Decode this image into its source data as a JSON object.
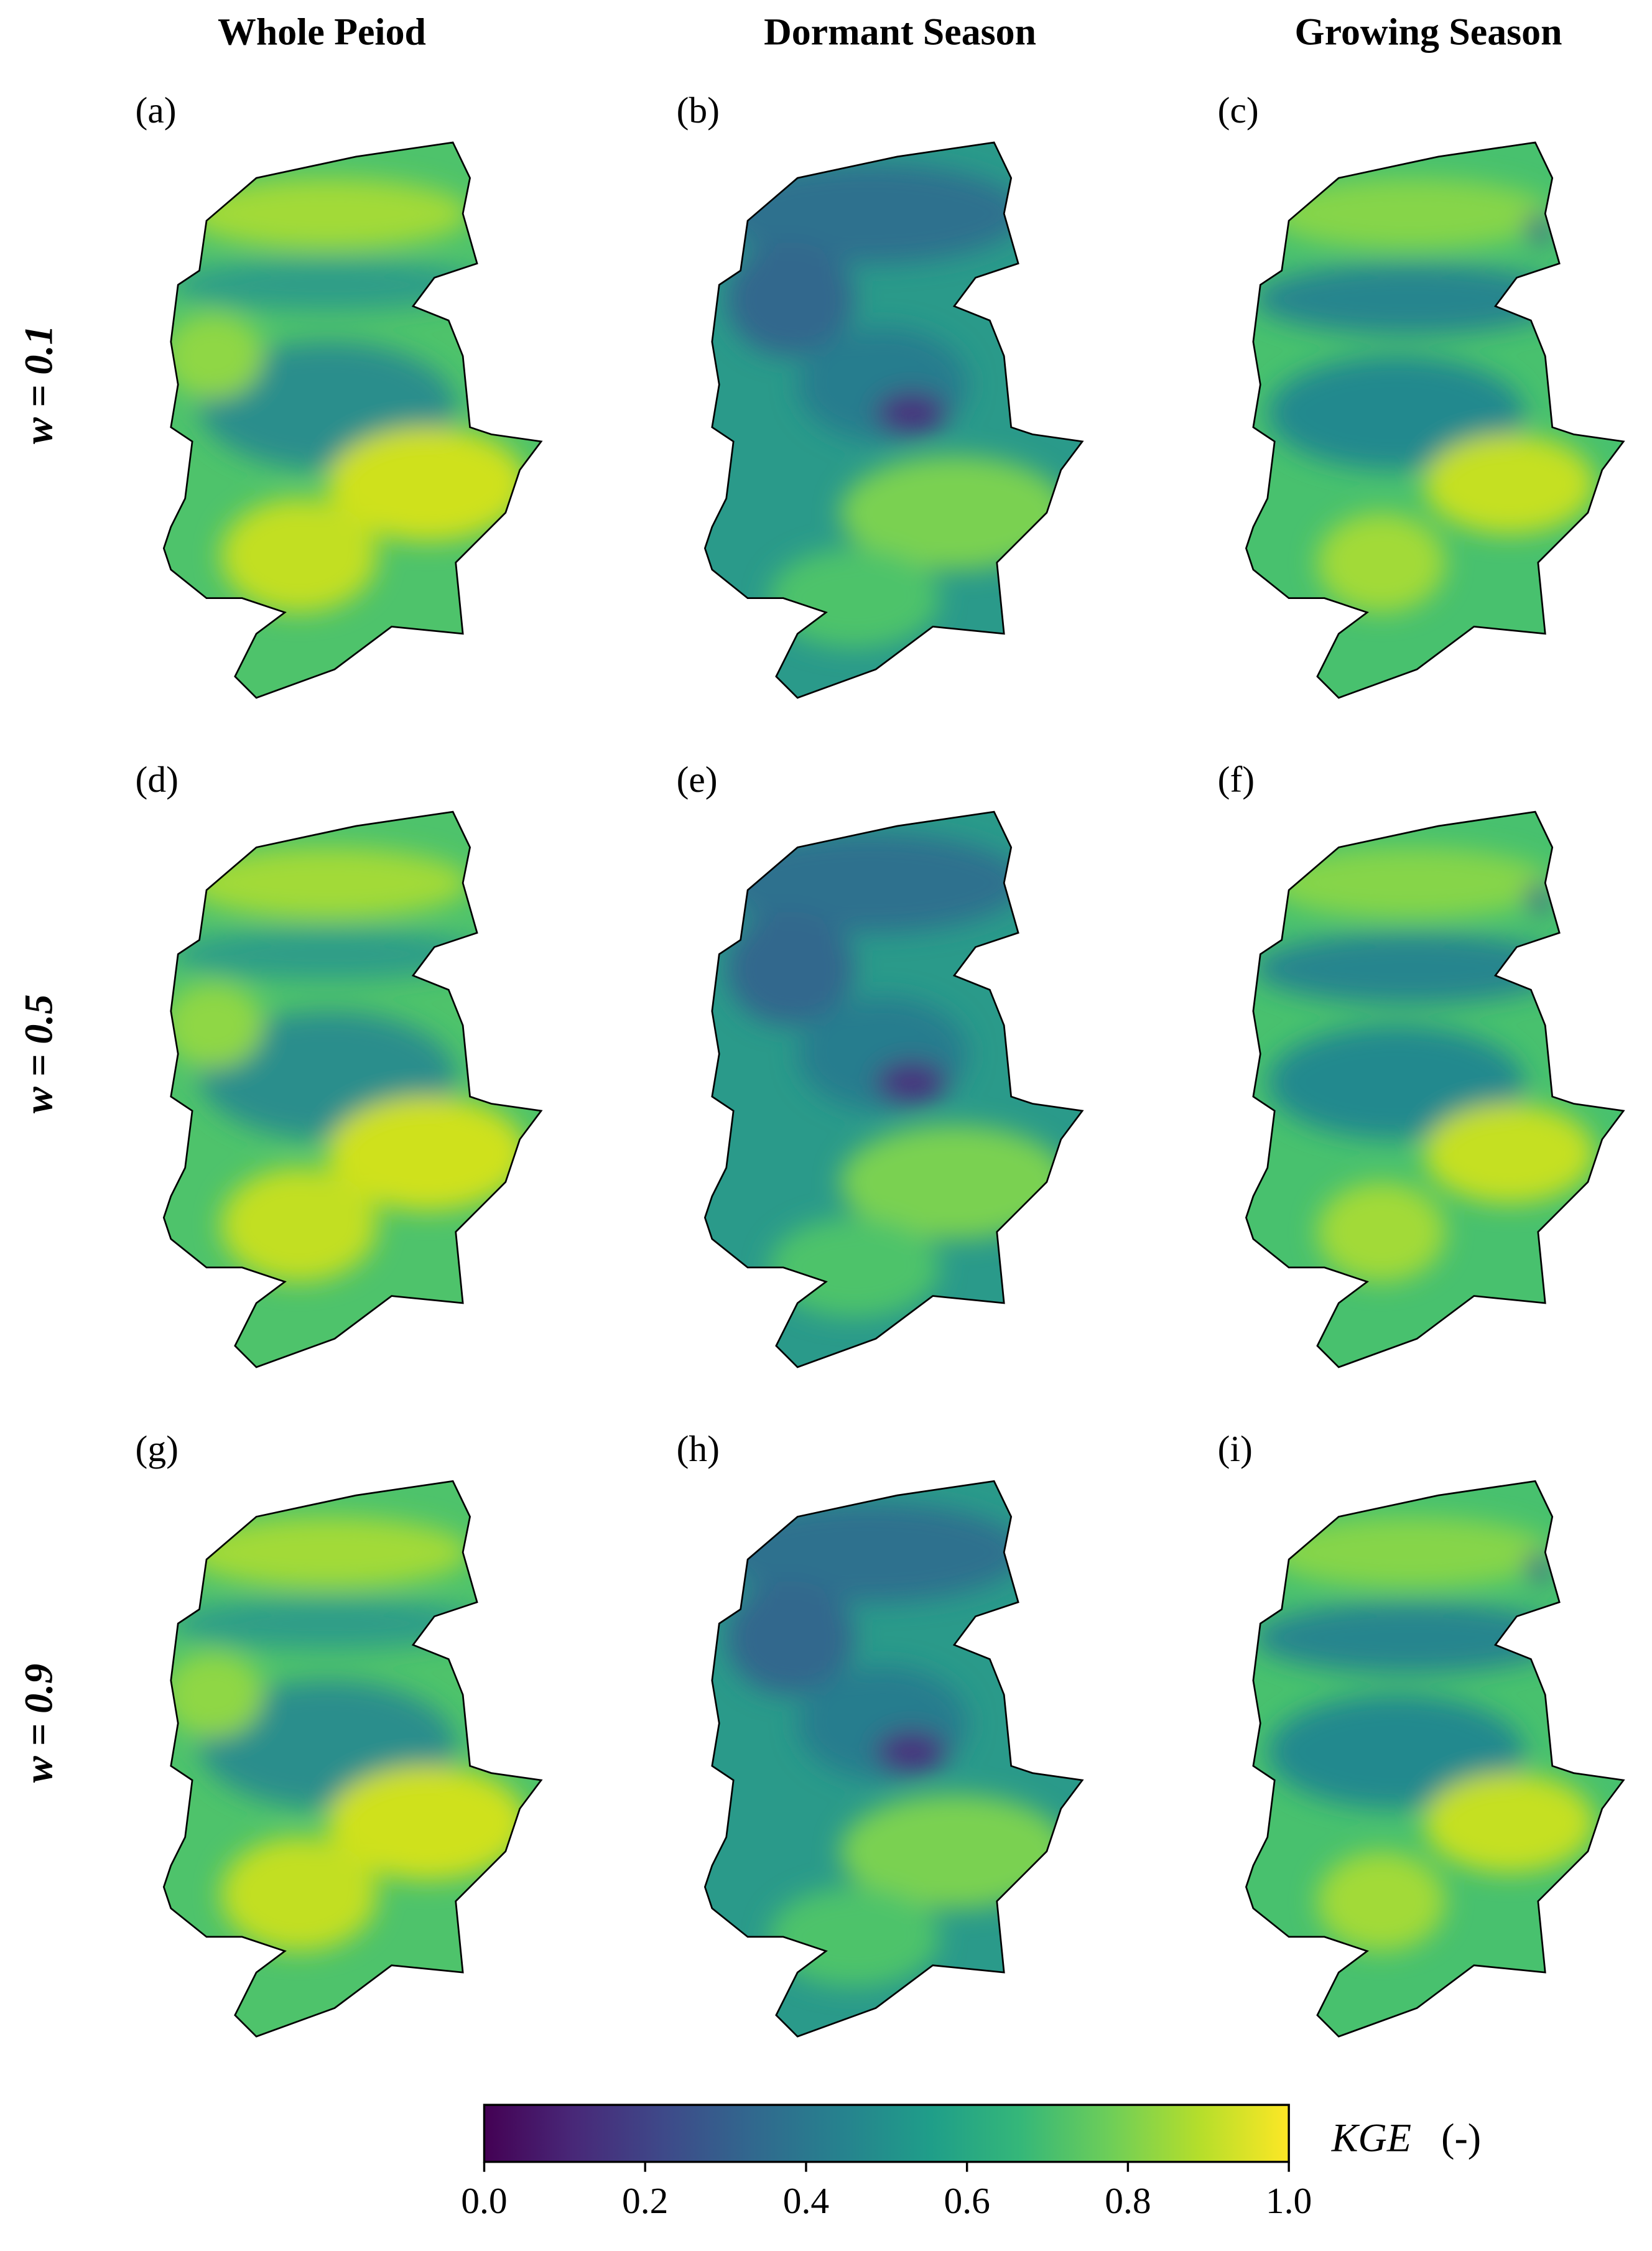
{
  "figure": {
    "column_titles": [
      "Whole Peiod",
      "Dormant Season",
      "Growing Season"
    ],
    "row_labels": [
      "w = 0.1",
      "w = 0.5",
      "w = 0.9"
    ],
    "panel_labels": [
      "(a)",
      "(b)",
      "(c)",
      "(d)",
      "(e)",
      "(f)",
      "(g)",
      "(h)",
      "(i)"
    ],
    "colorbar": {
      "label": "KGE",
      "unit": "(-)",
      "colormap": "viridis",
      "lim": [
        0,
        1
      ],
      "ticks": [
        {
          "value": 0,
          "label": "0.0"
        },
        {
          "value": 0.2,
          "label": "0.2"
        },
        {
          "value": 0.4,
          "label": "0.4"
        },
        {
          "value": 0.6,
          "label": "0.6"
        },
        {
          "value": 0.8,
          "label": "0.8"
        },
        {
          "value": 1,
          "label": "1.0"
        }
      ]
    }
  }
}
